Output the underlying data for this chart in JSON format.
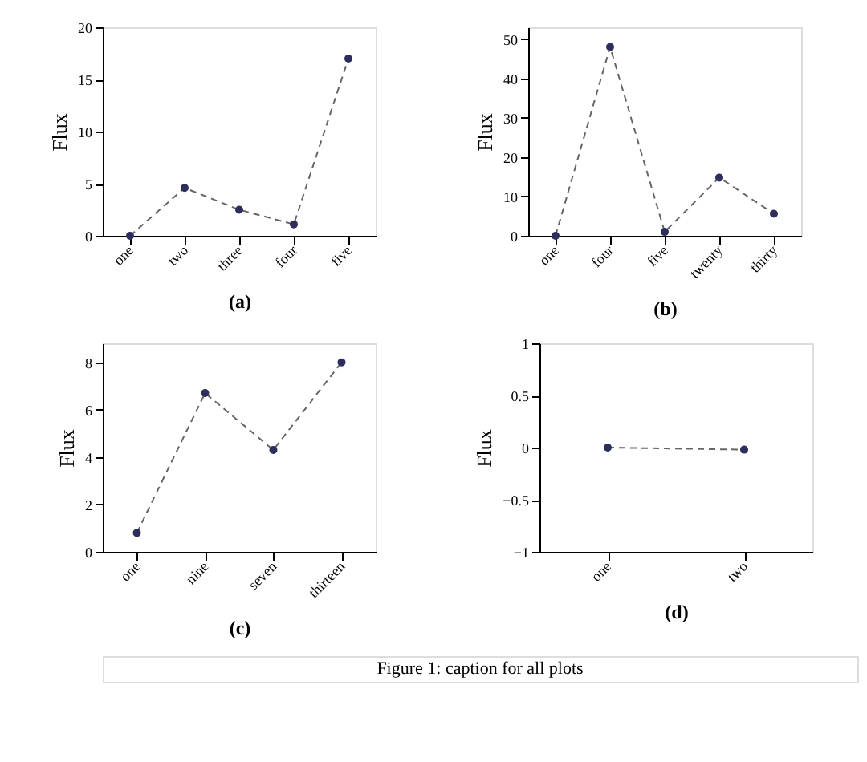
{
  "chart_data": [
    {
      "type": "line",
      "xlabel": "(a)",
      "ylabel": "Flux",
      "categories": [
        "one",
        "two",
        "three",
        "four",
        "five"
      ],
      "series": [
        {
          "color": "#2e2e5c",
          "values": [
            0,
            4.6,
            2.5,
            1.1,
            17
          ]
        }
      ],
      "ylim": [
        0,
        20
      ],
      "yticks": [
        0,
        5,
        10,
        15,
        20
      ],
      "marker": "circle",
      "line_style": "dashed",
      "grid": false
    },
    {
      "type": "line",
      "xlabel": "(b)",
      "ylabel": "Flux",
      "categories": [
        "one",
        "four",
        "five",
        "twenty",
        "thirty"
      ],
      "series": [
        {
          "color": "#2e2e5c",
          "values": [
            0,
            48,
            1,
            14.8,
            5.6
          ]
        }
      ],
      "ylim": [
        0,
        53
      ],
      "yticks": [
        0,
        10,
        20,
        30,
        40,
        50
      ],
      "marker": "circle",
      "line_style": "dashed",
      "grid": false
    },
    {
      "type": "line",
      "xlabel": "(c)",
      "ylabel": "Flux",
      "categories": [
        "one",
        "nine",
        "seven",
        "thirteen"
      ],
      "series": [
        {
          "color": "#2e2e5c",
          "values": [
            0.8,
            6.7,
            4.3,
            8
          ]
        }
      ],
      "ylim": [
        0,
        8.8
      ],
      "yticks": [
        0,
        2,
        4,
        6,
        8
      ],
      "marker": "circle",
      "line_style": "dashed",
      "grid": false
    },
    {
      "type": "line",
      "xlabel": "(d)",
      "ylabel": "Flux",
      "categories": [
        "one",
        "two"
      ],
      "series": [
        {
          "color": "#2e2e5c",
          "values": [
            0,
            -0.02
          ]
        }
      ],
      "ylim": [
        -1,
        1
      ],
      "yticks": [
        -1,
        -0.5,
        0,
        0.5,
        1
      ],
      "marker": "circle",
      "line_style": "dashed",
      "grid": false,
      "annotations": [
        "Figure 1: caption for all plots"
      ]
    }
  ]
}
